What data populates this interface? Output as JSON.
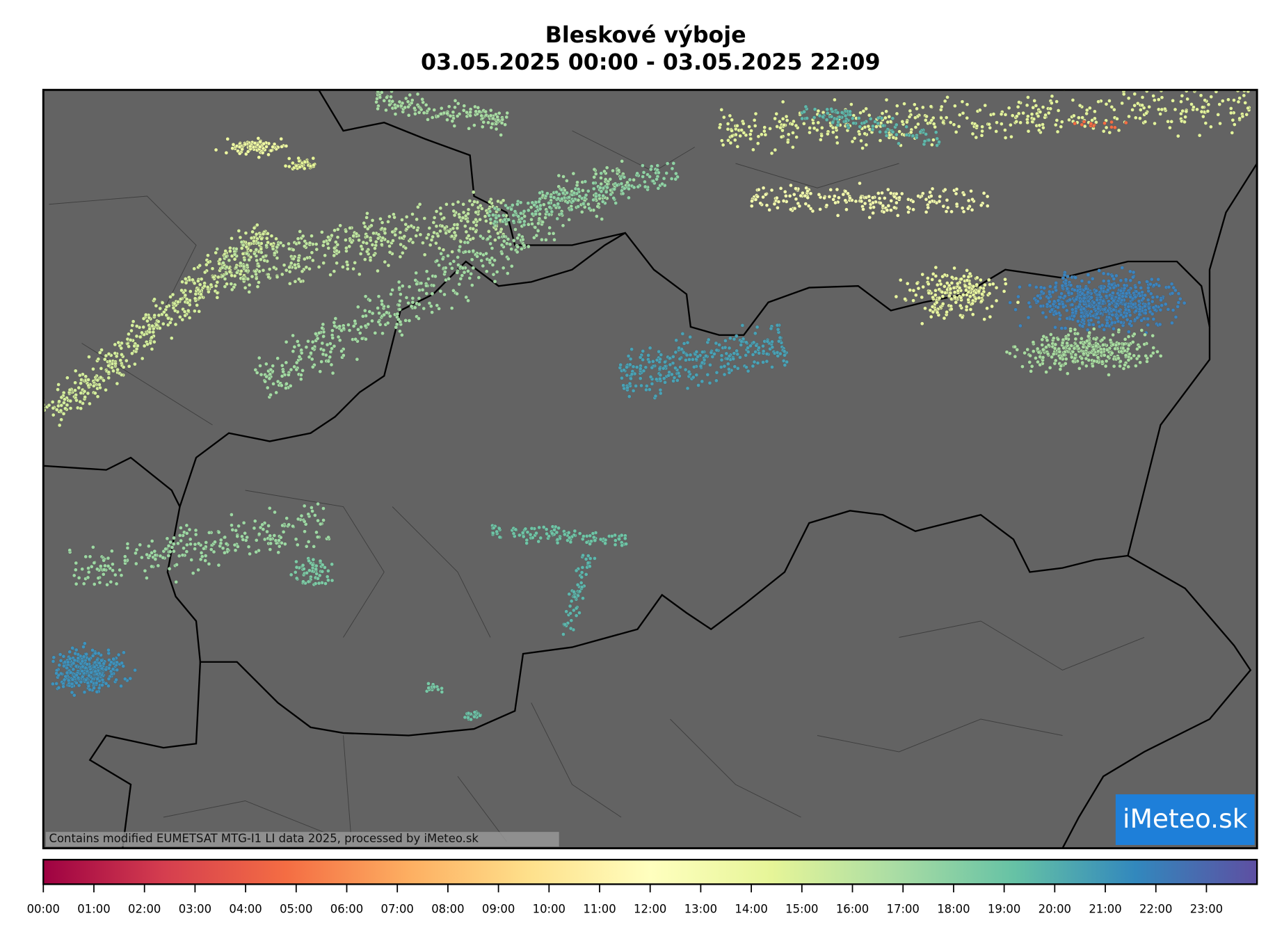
{
  "header": {
    "title": "Bleskové výboje",
    "subtitle": "03.05.2025 00:00 - 03.05.2025 22:09"
  },
  "map": {
    "attribution": "Contains modified EUMETSAT MTG-I1 LI data 2025, processed by iMeteo.sk",
    "logo": "iMeteo.sk"
  },
  "colorbar": {
    "ticks": [
      "00:00",
      "01:00",
      "02:00",
      "03:00",
      "04:00",
      "05:00",
      "06:00",
      "07:00",
      "08:00",
      "09:00",
      "10:00",
      "11:00",
      "12:00",
      "13:00",
      "14:00",
      "15:00",
      "16:00",
      "17:00",
      "18:00",
      "19:00",
      "20:00",
      "21:00",
      "22:00",
      "23:00"
    ]
  }
}
